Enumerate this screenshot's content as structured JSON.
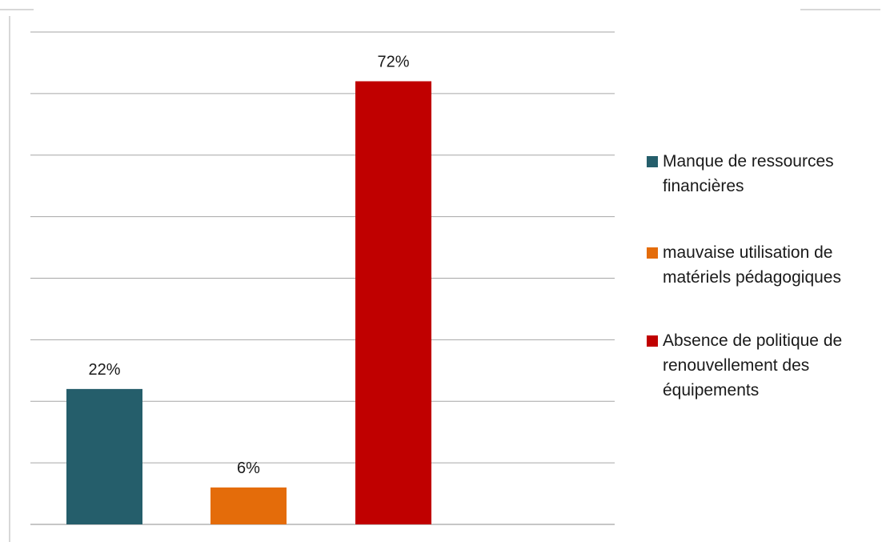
{
  "chart_data": {
    "type": "bar",
    "categories": [
      "Manque de ressources financières",
      "mauvaise utilisation  de matériels pédagogiques",
      "Absence de politique de renouvellement des équipements"
    ],
    "values": [
      22,
      6,
      72
    ],
    "data_labels": [
      "22%",
      "6%",
      "72%"
    ],
    "ylim": [
      0,
      80
    ],
    "grid": true,
    "legend_position": "right",
    "colors": [
      "#255E6B",
      "#E46C0A",
      "#C00000"
    ],
    "title": "",
    "xlabel": "",
    "ylabel": ""
  },
  "legend": {
    "items": [
      {
        "lines": [
          "Manque de ressources",
          "financières"
        ],
        "color": "#255E6B"
      },
      {
        "lines": [
          "mauvaise utilisation  de",
          "matériels pédagogiques"
        ],
        "color": "#E46C0A"
      },
      {
        "lines": [
          "Absence de politique de",
          "renouvellement des",
          "équipements"
        ],
        "color": "#C00000"
      }
    ]
  }
}
